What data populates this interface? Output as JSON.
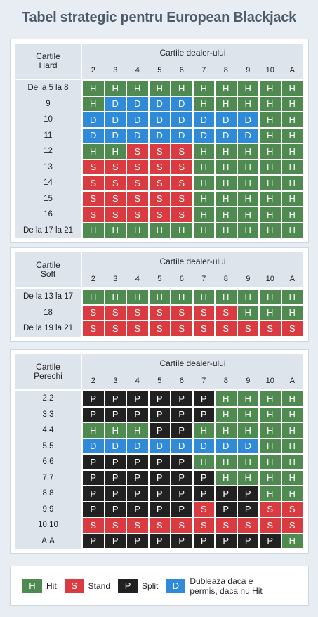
{
  "title": "Tabel strategic pentru European Blackjack",
  "tables": [
    {
      "label": [
        "Cartile",
        "Hard"
      ],
      "header": "Cartile dealer-ului",
      "columns": [
        "2",
        "3",
        "4",
        "5",
        "6",
        "7",
        "8",
        "9",
        "10",
        "A"
      ],
      "rows": [
        {
          "label": "De la 5 la 8",
          "cells": [
            "H",
            "H",
            "H",
            "H",
            "H",
            "H",
            "H",
            "H",
            "H",
            "H"
          ]
        },
        {
          "label": "9",
          "cells": [
            "H",
            "D",
            "D",
            "D",
            "D",
            "H",
            "H",
            "H",
            "H",
            "H"
          ]
        },
        {
          "label": "10",
          "cells": [
            "D",
            "D",
            "D",
            "D",
            "D",
            "D",
            "D",
            "D",
            "H",
            "H"
          ]
        },
        {
          "label": "11",
          "cells": [
            "D",
            "D",
            "D",
            "D",
            "D",
            "D",
            "D",
            "D",
            "H",
            "H"
          ]
        },
        {
          "label": "12",
          "cells": [
            "H",
            "H",
            "S",
            "S",
            "S",
            "H",
            "H",
            "H",
            "H",
            "H"
          ]
        },
        {
          "label": "13",
          "cells": [
            "S",
            "S",
            "S",
            "S",
            "S",
            "H",
            "H",
            "H",
            "H",
            "H"
          ]
        },
        {
          "label": "14",
          "cells": [
            "S",
            "S",
            "S",
            "S",
            "S",
            "H",
            "H",
            "H",
            "H",
            "H"
          ]
        },
        {
          "label": "15",
          "cells": [
            "S",
            "S",
            "S",
            "S",
            "S",
            "H",
            "H",
            "H",
            "H",
            "H"
          ]
        },
        {
          "label": "16",
          "cells": [
            "S",
            "S",
            "S",
            "S",
            "S",
            "H",
            "H",
            "H",
            "H",
            "H"
          ]
        },
        {
          "label": "De la 17 la 21",
          "cells": [
            "H",
            "H",
            "H",
            "H",
            "H",
            "H",
            "H",
            "H",
            "H",
            "H"
          ]
        }
      ]
    },
    {
      "label": [
        "Cartile",
        "Soft"
      ],
      "header": "Cartile dealer-ului",
      "columns": [
        "2",
        "3",
        "4",
        "5",
        "6",
        "7",
        "8",
        "9",
        "10",
        "A"
      ],
      "rows": [
        {
          "label": "De la 13 la 17",
          "cells": [
            "H",
            "H",
            "H",
            "H",
            "H",
            "H",
            "H",
            "H",
            "H",
            "H"
          ]
        },
        {
          "label": "18",
          "cells": [
            "S",
            "S",
            "S",
            "S",
            "S",
            "S",
            "S",
            "H",
            "H",
            "H"
          ]
        },
        {
          "label": "De la 19 la 21",
          "cells": [
            "S",
            "S",
            "S",
            "S",
            "S",
            "S",
            "S",
            "S",
            "S",
            "S"
          ]
        }
      ]
    },
    {
      "label": [
        "Cartile",
        "Perechi"
      ],
      "header": "Cartile dealer-ului",
      "columns": [
        "2",
        "3",
        "4",
        "5",
        "6",
        "7",
        "8",
        "9",
        "10",
        "A"
      ],
      "rows": [
        {
          "label": "2,2",
          "cells": [
            "P",
            "P",
            "P",
            "P",
            "P",
            "P",
            "H",
            "H",
            "H",
            "H"
          ]
        },
        {
          "label": "3,3",
          "cells": [
            "P",
            "P",
            "P",
            "P",
            "P",
            "P",
            "H",
            "H",
            "H",
            "H"
          ]
        },
        {
          "label": "4,4",
          "cells": [
            "H",
            "H",
            "H",
            "P",
            "P",
            "H",
            "H",
            "H",
            "H",
            "H"
          ]
        },
        {
          "label": "5,5",
          "cells": [
            "D",
            "D",
            "D",
            "D",
            "D",
            "D",
            "D",
            "D",
            "H",
            "H"
          ]
        },
        {
          "label": "6,6",
          "cells": [
            "P",
            "P",
            "P",
            "P",
            "P",
            "H",
            "H",
            "H",
            "H",
            "H"
          ]
        },
        {
          "label": "7,7",
          "cells": [
            "P",
            "P",
            "P",
            "P",
            "P",
            "P",
            "H",
            "H",
            "H",
            "H"
          ]
        },
        {
          "label": "8,8",
          "cells": [
            "P",
            "P",
            "P",
            "P",
            "P",
            "P",
            "P",
            "P",
            "H",
            "H"
          ]
        },
        {
          "label": "9,9",
          "cells": [
            "P",
            "P",
            "P",
            "P",
            "P",
            "S",
            "P",
            "P",
            "S",
            "S"
          ]
        },
        {
          "label": "10,10",
          "cells": [
            "S",
            "S",
            "S",
            "S",
            "S",
            "S",
            "S",
            "S",
            "S",
            "S"
          ]
        },
        {
          "label": "A,A",
          "cells": [
            "P",
            "P",
            "P",
            "P",
            "P",
            "P",
            "P",
            "P",
            "P",
            "H"
          ]
        }
      ]
    }
  ],
  "legend": [
    {
      "code": "H",
      "text": "Hit"
    },
    {
      "code": "S",
      "text": "Stand"
    },
    {
      "code": "P",
      "text": "Split"
    },
    {
      "code": "D",
      "text": "Dubleaza daca e permis, daca nu Hit"
    }
  ]
}
